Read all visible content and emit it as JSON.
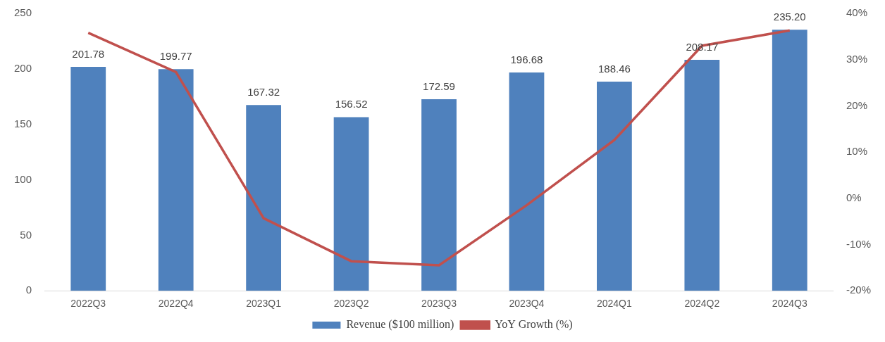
{
  "chart_data": {
    "type": "bar",
    "categories": [
      "2022Q3",
      "2022Q4",
      "2023Q1",
      "2023Q2",
      "2023Q3",
      "2023Q4",
      "2024Q1",
      "2024Q2",
      "2024Q3"
    ],
    "series": [
      {
        "name": "Revenue ($100 million)",
        "type": "bar",
        "color": "#4F81BD",
        "values": [
          201.78,
          199.77,
          167.32,
          156.52,
          172.59,
          196.68,
          188.46,
          208.17,
          235.2
        ],
        "value_labels": [
          "201.78",
          "199.77",
          "167.32",
          "156.52",
          "172.59",
          "196.68",
          "188.46",
          "208.17",
          "235.20"
        ]
      },
      {
        "name": "YoY Growth (%)",
        "type": "line",
        "color": "#C0504D",
        "axis": "y2",
        "marker": "none",
        "line_style": "solid",
        "values": [
          35.8,
          27.3,
          -4.3,
          -13.6,
          -14.5,
          -1.5,
          12.6,
          33.0,
          36.3
        ]
      }
    ],
    "ylim": [
      0,
      250
    ],
    "yticks": [
      0,
      50,
      100,
      150,
      200,
      250
    ],
    "y2lim": [
      -20,
      40
    ],
    "y2ticks": [
      {
        "value": -20,
        "label": "-20%"
      },
      {
        "value": -10,
        "label": "-10%"
      },
      {
        "value": 0,
        "label": "0%"
      },
      {
        "value": 10,
        "label": "10%"
      },
      {
        "value": 20,
        "label": "20%"
      },
      {
        "value": 30,
        "label": "30%"
      },
      {
        "value": 40,
        "label": "40%"
      }
    ],
    "grid": false,
    "legend": "bottom",
    "data_labels": true
  }
}
